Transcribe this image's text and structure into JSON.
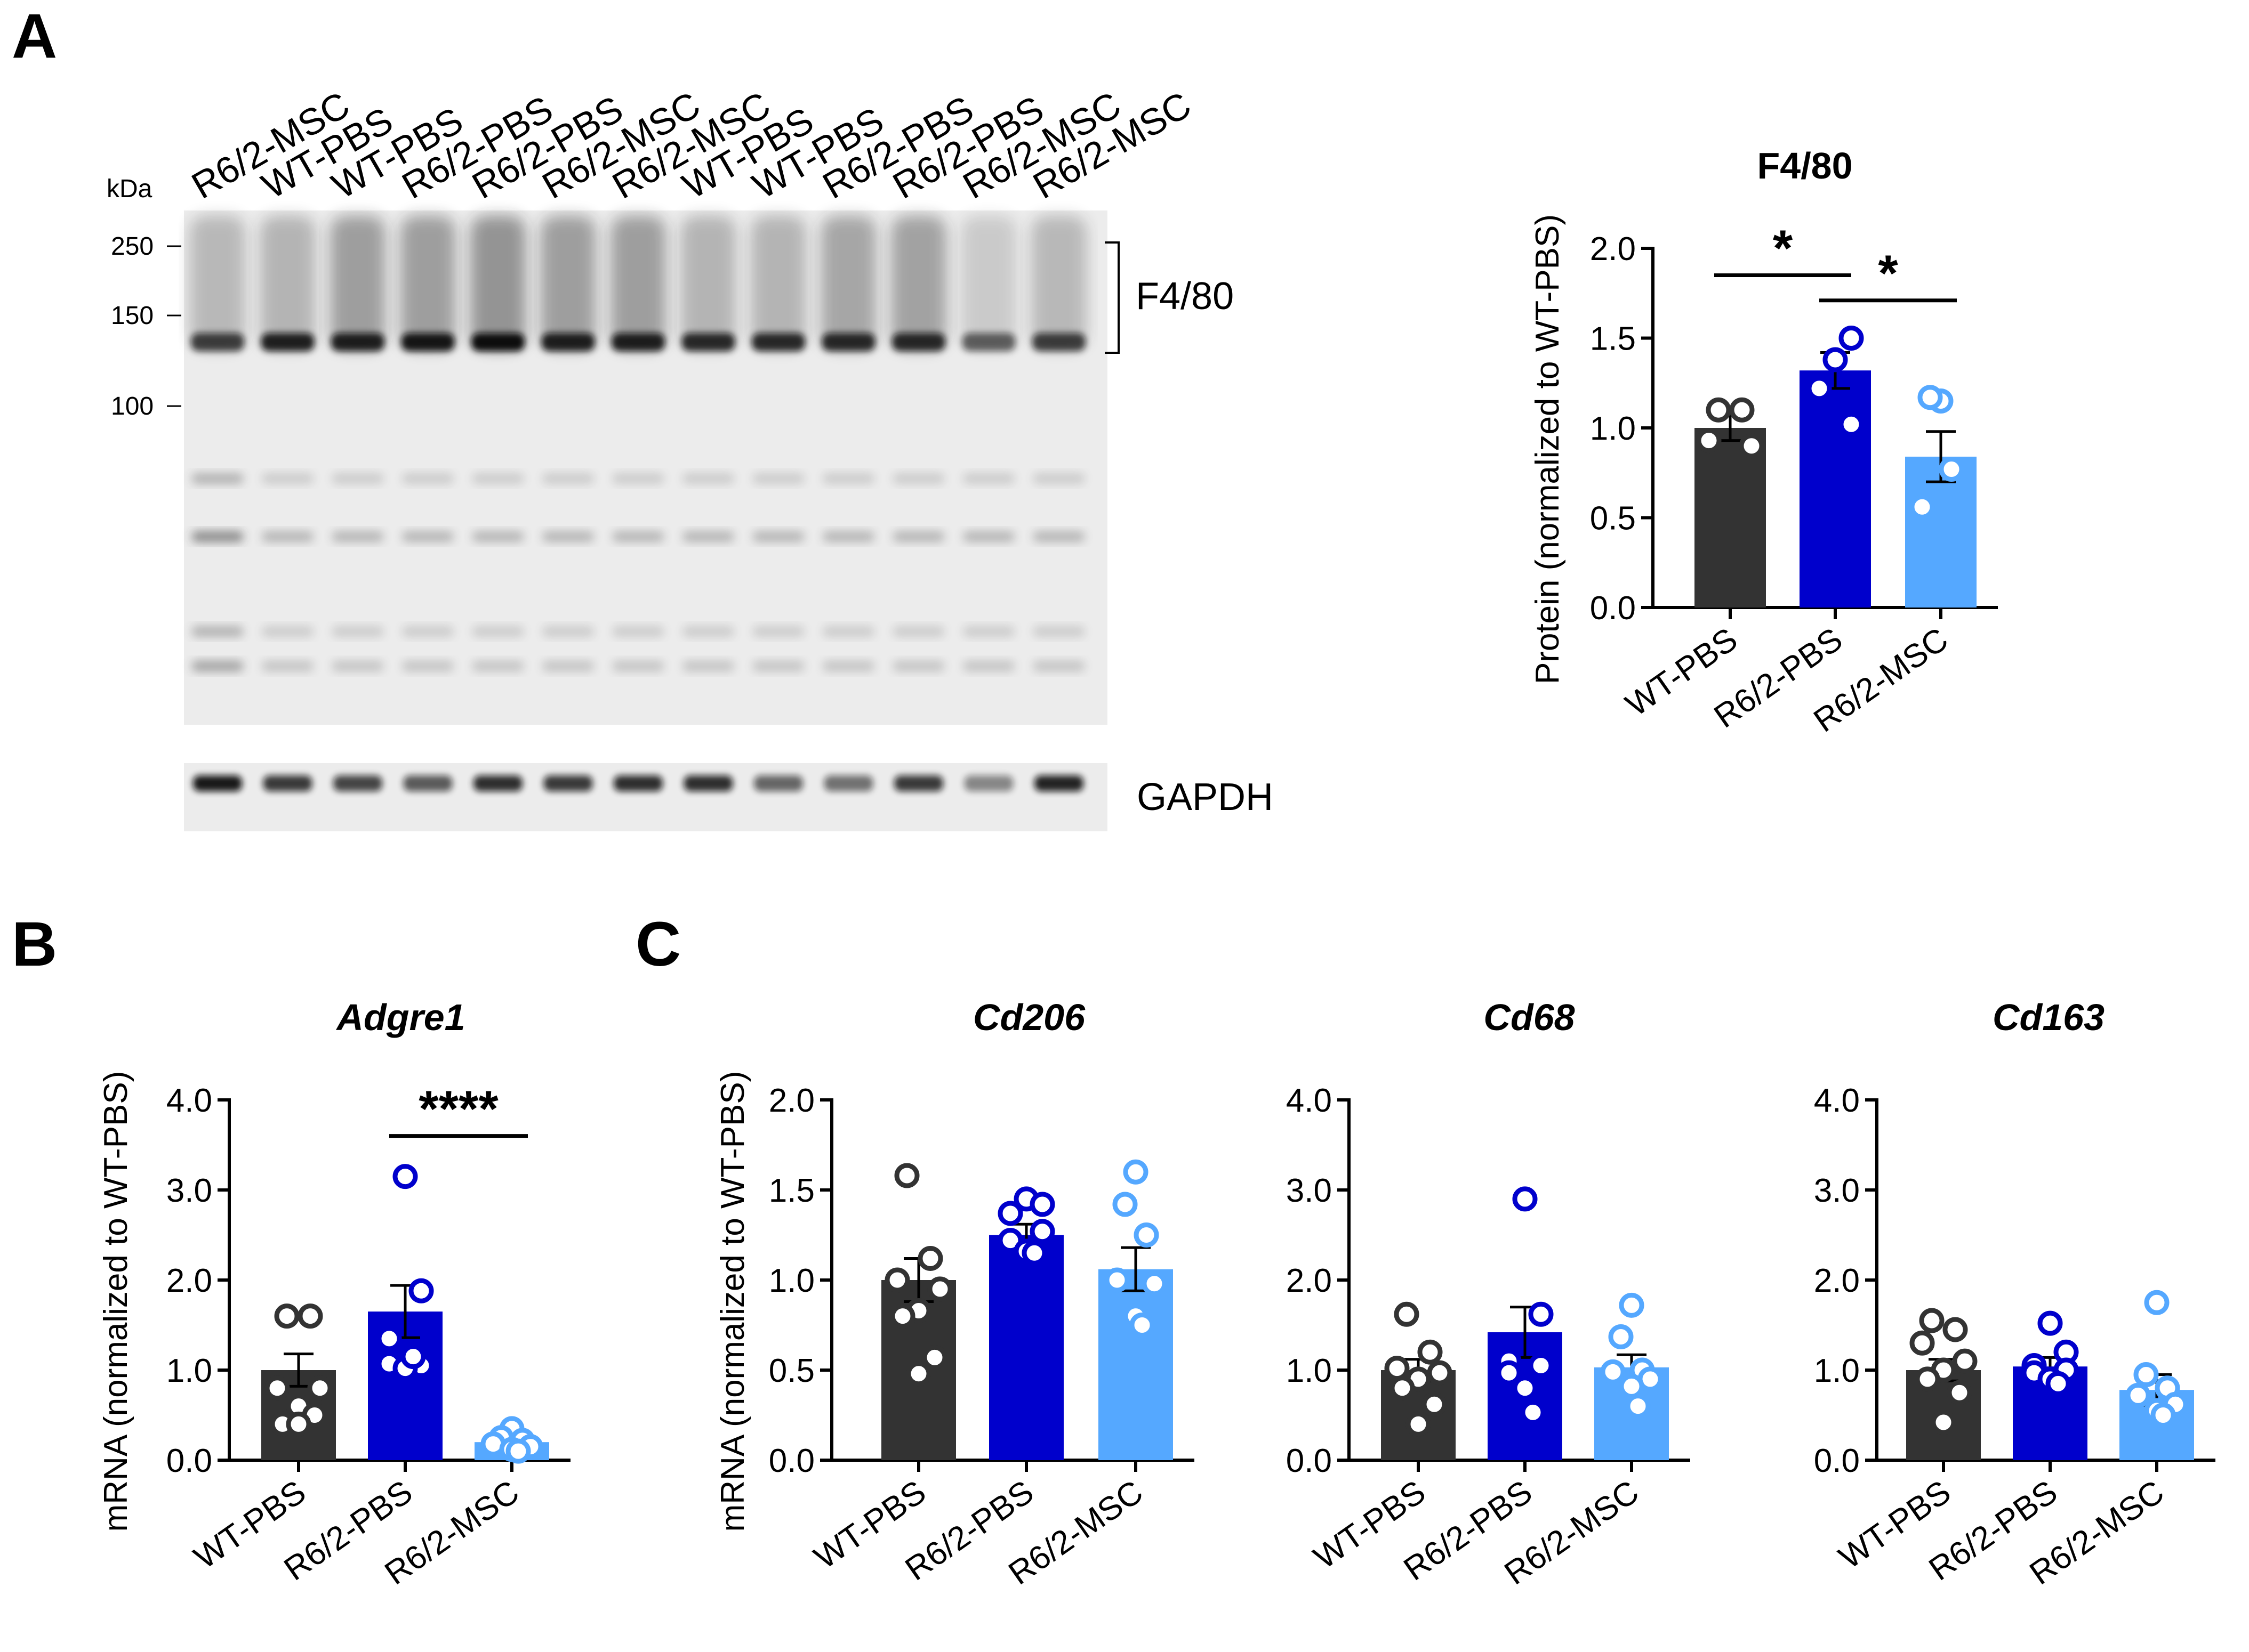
{
  "panels": {
    "a": "A",
    "b": "B",
    "c": "C"
  },
  "blot": {
    "lanes": [
      "R6/2-MSC",
      "WT-PBS",
      "WT-PBS",
      "R6/2-PBS",
      "R6/2-PBS",
      "R6/2-MSC",
      "R6/2-MSC",
      "WT-PBS",
      "WT-PBS",
      "R6/2-PBS",
      "R6/2-PBS",
      "R6/2-MSC",
      "R6/2-MSC"
    ],
    "kda_title": "kDa",
    "markers": [
      "250",
      "150",
      "100"
    ],
    "band_label": "F4/80",
    "loading_label": "GAPDH"
  },
  "colors": {
    "wt_pbs": "#333333",
    "r62_pbs": "#0000cc",
    "r62_msc": "#55a8ff"
  },
  "chart_data": [
    {
      "id": "f480",
      "type": "bar",
      "title": "F4/80",
      "title_style": "bold",
      "ylabel": "Protein (normalized to WT-PBS)",
      "categories": [
        "WT-PBS",
        "R6/2-PBS",
        "R6/2-MSC"
      ],
      "values": [
        1.0,
        1.32,
        0.84
      ],
      "sem": [
        0.07,
        0.1,
        0.14
      ],
      "points": [
        [
          1.1,
          1.1,
          0.93,
          0.9
        ],
        [
          1.38,
          1.5,
          1.22,
          1.02
        ],
        [
          1.15,
          1.17,
          0.77,
          0.56
        ]
      ],
      "ylim": [
        0,
        2.0
      ],
      "yticks": [
        "0.0",
        "0.5",
        "1.0",
        "1.5",
        "2.0"
      ],
      "significance": [
        {
          "from": 0,
          "to": 1,
          "label": "*",
          "y": 1.85
        },
        {
          "from": 1,
          "to": 2,
          "label": "*",
          "y": 1.71
        }
      ]
    },
    {
      "id": "adgre1",
      "type": "bar",
      "title": "Adgre1",
      "title_style": "italic",
      "ylabel": "mRNA (normalized to WT-PBS)",
      "categories": [
        "WT-PBS",
        "R6/2-PBS",
        "R6/2-MSC"
      ],
      "values": [
        1.0,
        1.65,
        0.2
      ],
      "sem": [
        0.18,
        0.29,
        0.04
      ],
      "points": [
        [
          1.6,
          1.6,
          0.8,
          0.8,
          0.6,
          0.4,
          0.5,
          0.4
        ],
        [
          3.15,
          1.88,
          1.35,
          1.05,
          1.07,
          1.02,
          1.15
        ],
        [
          0.35,
          0.25,
          0.22,
          0.18,
          0.15,
          0.12,
          0.1
        ]
      ],
      "ylim": [
        0,
        4.0
      ],
      "yticks": [
        "0.0",
        "1.0",
        "2.0",
        "3.0",
        "4.0"
      ],
      "significance": [
        {
          "from": 1,
          "to": 2,
          "label": "****",
          "y": 3.6
        }
      ]
    },
    {
      "id": "cd206",
      "type": "bar",
      "title": "Cd206",
      "title_style": "italic",
      "ylabel": "mRNA (normalized to WT-PBS)",
      "categories": [
        "WT-PBS",
        "R6/2-PBS",
        "R6/2-MSC"
      ],
      "values": [
        1.0,
        1.25,
        1.06
      ],
      "sem": [
        0.12,
        0.06,
        0.12
      ],
      "points": [
        [
          1.58,
          1.12,
          1.0,
          0.95,
          0.83,
          0.8,
          0.57,
          0.48
        ],
        [
          1.45,
          1.42,
          1.37,
          1.27,
          1.22,
          1.16,
          1.15
        ],
        [
          1.6,
          1.42,
          1.25,
          1.0,
          0.98,
          0.8,
          0.75
        ]
      ],
      "ylim": [
        0,
        2.0
      ],
      "yticks": [
        "0.0",
        "0.5",
        "1.0",
        "1.5",
        "2.0"
      ],
      "significance": []
    },
    {
      "id": "cd68",
      "type": "bar",
      "title": "Cd68",
      "title_style": "italic",
      "ylabel": "",
      "categories": [
        "WT-PBS",
        "R6/2-PBS",
        "R6/2-MSC"
      ],
      "values": [
        1.0,
        1.42,
        1.03
      ],
      "sem": [
        0.12,
        0.28,
        0.14
      ],
      "points": [
        [
          1.62,
          1.2,
          1.02,
          0.97,
          0.9,
          0.8,
          0.62,
          0.4
        ],
        [
          2.9,
          1.62,
          1.1,
          1.05,
          0.97,
          0.8,
          0.53
        ],
        [
          1.72,
          1.37,
          1.0,
          0.98,
          0.9,
          0.82,
          0.6
        ]
      ],
      "ylim": [
        0,
        4.0
      ],
      "yticks": [
        "0.0",
        "1.0",
        "2.0",
        "3.0",
        "4.0"
      ],
      "significance": []
    },
    {
      "id": "cd163",
      "type": "bar",
      "title": "Cd163",
      "title_style": "italic",
      "ylabel": "",
      "categories": [
        "WT-PBS",
        "R6/2-PBS",
        "R6/2-MSC"
      ],
      "values": [
        1.0,
        1.04,
        0.78
      ],
      "sem": [
        0.12,
        0.1,
        0.17
      ],
      "points": [
        [
          1.55,
          1.45,
          1.3,
          1.1,
          1.0,
          0.9,
          0.75,
          0.42
        ],
        [
          1.52,
          1.2,
          1.05,
          1.0,
          0.97,
          0.9,
          0.85
        ],
        [
          1.75,
          0.95,
          0.8,
          0.72,
          0.62,
          0.55,
          0.5
        ]
      ],
      "ylim": [
        0,
        4.0
      ],
      "yticks": [
        "0.0",
        "1.0",
        "2.0",
        "3.0",
        "4.0"
      ],
      "significance": []
    }
  ]
}
